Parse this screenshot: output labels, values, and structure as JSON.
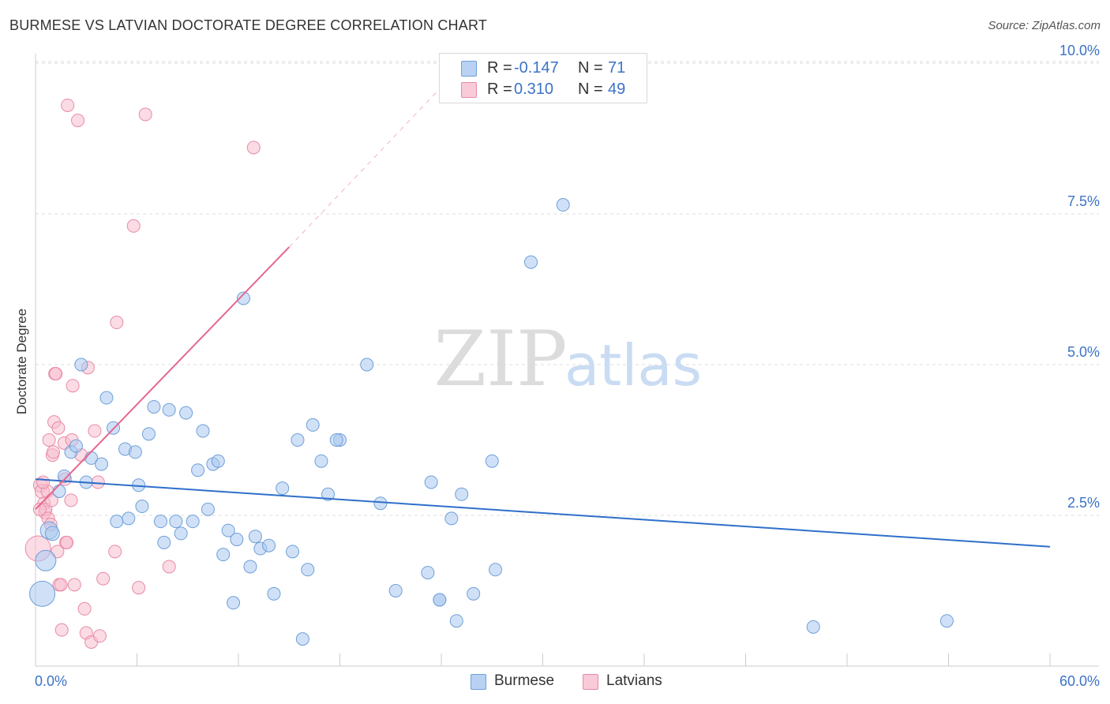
{
  "header": {
    "title": "BURMESE VS LATVIAN DOCTORATE DEGREE CORRELATION CHART",
    "source": "Source: ZipAtlas.com"
  },
  "watermark": {
    "zip": "ZIP",
    "atlas": "atlas"
  },
  "legend": {
    "rows": [
      {
        "r_label": "R =",
        "r_value": "-0.147",
        "n_label": "N =",
        "n_value": "71",
        "color": "#a9c8f0"
      },
      {
        "r_label": "R =",
        "r_value": "0.310",
        "n_label": "N =",
        "n_value": "49",
        "color": "#f5b8cb"
      }
    ],
    "bottom": [
      {
        "label": "Burmese",
        "color": "#a9c8f0"
      },
      {
        "label": "Latvians",
        "color": "#f5b8cb"
      }
    ]
  },
  "colors": {
    "burmese_fill": "#a9c8f0",
    "burmese_stroke": "#6f9fd8",
    "burmese_line": "#2f6fca",
    "latvian_fill": "#f7bfd0",
    "latvian_stroke": "#e88aa6",
    "latvian_line": "#e5678f",
    "tick_label": "#3b73c5",
    "grid": "#dddddd"
  },
  "chart_data": {
    "type": "scatter",
    "title": "BURMESE VS LATVIAN DOCTORATE DEGREE CORRELATION CHART",
    "xlabel": "",
    "ylabel": "Doctorate Degree",
    "xlim": [
      0,
      60
    ],
    "ylim": [
      0,
      10.5
    ],
    "x_tick_labels": [
      {
        "value": 0,
        "label": "0.0%"
      },
      {
        "value": 60,
        "label": "60.0%"
      }
    ],
    "y_ticks": [
      {
        "value": 2.5,
        "label": "2.5%"
      },
      {
        "value": 5.0,
        "label": "5.0%"
      },
      {
        "value": 7.5,
        "label": "7.5%"
      },
      {
        "value": 10.0,
        "label": "10.0%"
      }
    ],
    "grid": true,
    "legend_position": "top-center",
    "series": [
      {
        "name": "Burmese",
        "r": -0.147,
        "n": 71,
        "trend": {
          "x": [
            0,
            60
          ],
          "y": [
            3.1,
            1.98
          ],
          "dashed_extension": null
        },
        "points": [
          [
            0.4,
            1.2,
            16
          ],
          [
            0.6,
            1.75,
            13
          ],
          [
            0.8,
            2.25,
            11
          ],
          [
            1.0,
            2.2,
            9
          ],
          [
            1.4,
            2.9,
            8
          ],
          [
            1.7,
            3.15,
            8
          ],
          [
            2.1,
            3.55,
            8
          ],
          [
            2.4,
            3.65,
            8
          ],
          [
            2.7,
            5.0,
            8
          ],
          [
            3.0,
            3.05,
            8
          ],
          [
            3.3,
            3.45,
            8
          ],
          [
            3.9,
            3.35,
            8
          ],
          [
            4.2,
            4.45,
            8
          ],
          [
            4.6,
            3.95,
            8
          ],
          [
            4.8,
            2.4,
            8
          ],
          [
            5.3,
            3.6,
            8
          ],
          [
            5.5,
            2.45,
            8
          ],
          [
            5.9,
            3.55,
            8
          ],
          [
            6.1,
            3.0,
            8
          ],
          [
            6.3,
            2.65,
            8
          ],
          [
            6.7,
            3.85,
            8
          ],
          [
            7.0,
            4.3,
            8
          ],
          [
            7.4,
            2.4,
            8
          ],
          [
            7.6,
            2.05,
            8
          ],
          [
            7.9,
            4.25,
            8
          ],
          [
            8.3,
            2.4,
            8
          ],
          [
            8.6,
            2.2,
            8
          ],
          [
            8.9,
            4.2,
            8
          ],
          [
            9.3,
            2.4,
            8
          ],
          [
            9.6,
            3.25,
            8
          ],
          [
            9.9,
            3.9,
            8
          ],
          [
            10.2,
            2.6,
            8
          ],
          [
            10.5,
            3.35,
            8
          ],
          [
            10.8,
            3.4,
            8
          ],
          [
            11.1,
            1.85,
            8
          ],
          [
            11.4,
            2.25,
            8
          ],
          [
            11.7,
            1.05,
            8
          ],
          [
            11.9,
            2.1,
            8
          ],
          [
            12.3,
            6.1,
            8
          ],
          [
            12.7,
            1.65,
            8
          ],
          [
            13.0,
            2.15,
            8
          ],
          [
            13.3,
            1.95,
            8
          ],
          [
            13.8,
            2.0,
            8
          ],
          [
            14.1,
            1.2,
            8
          ],
          [
            14.6,
            2.95,
            8
          ],
          [
            15.2,
            1.9,
            8
          ],
          [
            15.5,
            3.75,
            8
          ],
          [
            15.8,
            0.45,
            8
          ],
          [
            16.1,
            1.6,
            8
          ],
          [
            16.4,
            4.0,
            8
          ],
          [
            16.9,
            3.4,
            8
          ],
          [
            17.3,
            2.85,
            8
          ],
          [
            18.0,
            3.75,
            8
          ],
          [
            17.8,
            3.75,
            8
          ],
          [
            19.6,
            5.0,
            8
          ],
          [
            20.4,
            2.7,
            8
          ],
          [
            21.3,
            1.25,
            8
          ],
          [
            23.4,
            3.05,
            8
          ],
          [
            23.2,
            1.55,
            8
          ],
          [
            23.9,
            1.1,
            8
          ],
          [
            24.6,
            2.45,
            8
          ],
          [
            24.9,
            0.75,
            8
          ],
          [
            25.2,
            2.85,
            8
          ],
          [
            25.9,
            1.2,
            8
          ],
          [
            27.0,
            3.4,
            8
          ],
          [
            27.2,
            1.6,
            8
          ],
          [
            29.3,
            6.7,
            8
          ],
          [
            31.2,
            7.65,
            8
          ],
          [
            46.0,
            0.65,
            8
          ],
          [
            53.9,
            0.75,
            8
          ],
          [
            23.9,
            1.1,
            8
          ]
        ]
      },
      {
        "name": "Latvians",
        "r": 0.31,
        "n": 49,
        "trend": {
          "x": [
            0,
            15.0
          ],
          "y": [
            2.6,
            6.95
          ],
          "dashed_extension": {
            "x": [
              15.0,
              24.5
            ],
            "y": [
              6.95,
              9.75
            ]
          }
        },
        "points": [
          [
            0.15,
            1.95,
            16
          ],
          [
            0.3,
            3.0,
            9
          ],
          [
            0.4,
            2.9,
            9
          ],
          [
            0.5,
            2.7,
            8
          ],
          [
            0.55,
            2.55,
            8
          ],
          [
            0.6,
            2.6,
            8
          ],
          [
            0.7,
            2.9,
            8
          ],
          [
            0.75,
            2.45,
            8
          ],
          [
            0.8,
            3.75,
            8
          ],
          [
            0.9,
            2.35,
            8
          ],
          [
            0.95,
            2.75,
            8
          ],
          [
            1.0,
            3.5,
            8
          ],
          [
            1.05,
            3.55,
            8
          ],
          [
            1.1,
            4.05,
            8
          ],
          [
            1.15,
            4.85,
            8
          ],
          [
            1.2,
            4.85,
            8
          ],
          [
            1.3,
            1.9,
            8
          ],
          [
            1.35,
            3.95,
            8
          ],
          [
            1.4,
            1.35,
            8
          ],
          [
            1.5,
            1.35,
            8
          ],
          [
            1.55,
            0.6,
            8
          ],
          [
            1.7,
            3.7,
            8
          ],
          [
            1.75,
            3.1,
            8
          ],
          [
            1.8,
            2.05,
            8
          ],
          [
            1.85,
            2.05,
            8
          ],
          [
            1.9,
            9.3,
            8
          ],
          [
            2.1,
            2.75,
            8
          ],
          [
            2.15,
            3.75,
            8
          ],
          [
            2.2,
            4.65,
            8
          ],
          [
            2.3,
            1.35,
            8
          ],
          [
            2.5,
            9.05,
            8
          ],
          [
            2.7,
            3.5,
            8
          ],
          [
            2.9,
            0.95,
            8
          ],
          [
            3.0,
            0.55,
            8
          ],
          [
            3.1,
            4.95,
            8
          ],
          [
            3.3,
            0.4,
            8
          ],
          [
            3.5,
            3.9,
            8
          ],
          [
            3.7,
            3.05,
            8
          ],
          [
            3.8,
            0.5,
            8
          ],
          [
            4.0,
            1.45,
            8
          ],
          [
            4.7,
            1.9,
            8
          ],
          [
            4.8,
            5.7,
            8
          ],
          [
            5.8,
            7.3,
            8
          ],
          [
            6.1,
            1.3,
            8
          ],
          [
            6.5,
            9.15,
            8
          ],
          [
            7.9,
            1.65,
            8
          ],
          [
            12.9,
            8.6,
            8
          ],
          [
            0.45,
            3.05,
            8
          ],
          [
            0.25,
            2.6,
            8
          ]
        ]
      }
    ]
  }
}
